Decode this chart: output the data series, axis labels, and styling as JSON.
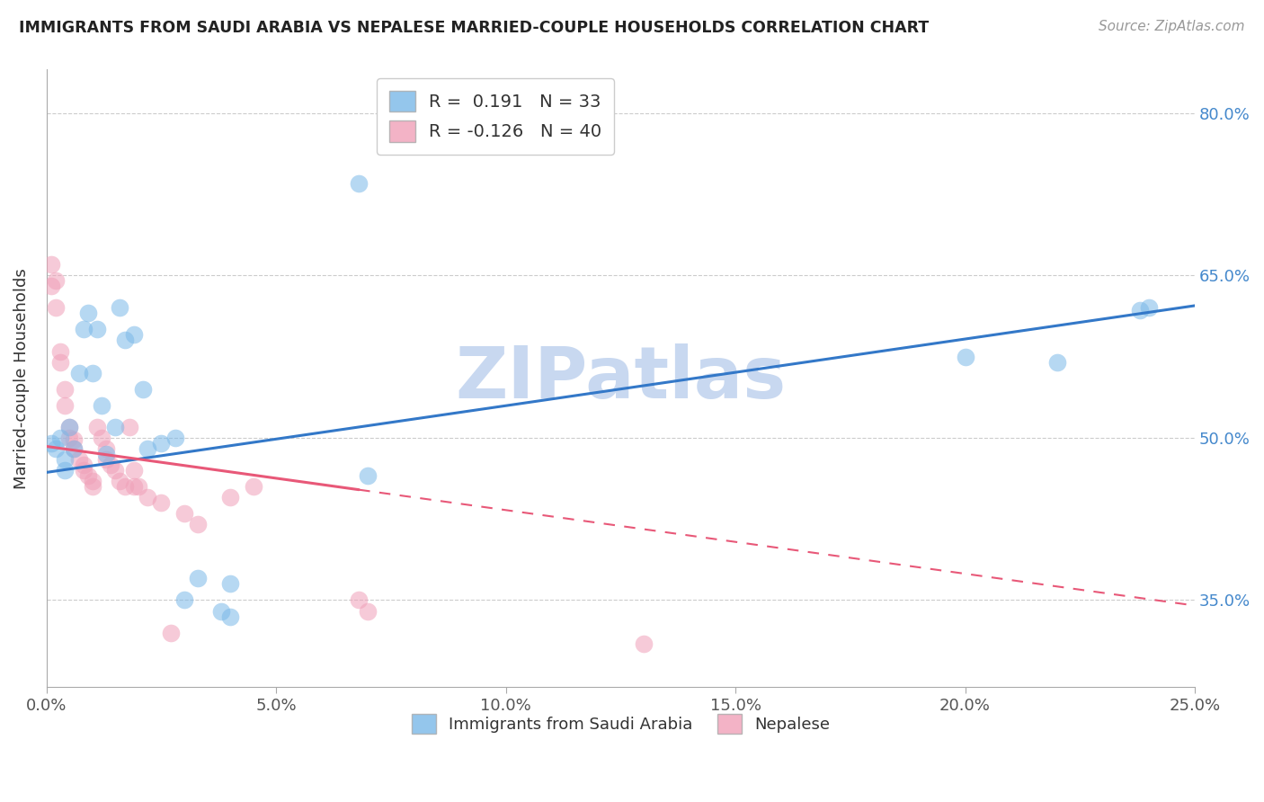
{
  "title": "IMMIGRANTS FROM SAUDI ARABIA VS NEPALESE MARRIED-COUPLE HOUSEHOLDS CORRELATION CHART",
  "source": "Source: ZipAtlas.com",
  "ylabel": "Married-couple Households",
  "xlim": [
    0.0,
    0.25
  ],
  "ylim": [
    0.27,
    0.84
  ],
  "yticks": [
    0.35,
    0.5,
    0.65,
    0.8
  ],
  "ytick_labels": [
    "35.0%",
    "50.0%",
    "65.0%",
    "80.0%"
  ],
  "xticks": [
    0.0,
    0.05,
    0.1,
    0.15,
    0.2,
    0.25
  ],
  "xtick_labels": [
    "0.0%",
    "5.0%",
    "10.0%",
    "15.0%",
    "20.0%",
    "25.0%"
  ],
  "blue_R": 0.191,
  "blue_N": 33,
  "pink_R": -0.126,
  "pink_N": 40,
  "blue_color": "#7ab8e8",
  "pink_color": "#f0a0b8",
  "blue_line_color": "#3378c8",
  "pink_line_color": "#e85878",
  "watermark": "ZIPatlas",
  "watermark_color": "#c8d8f0",
  "blue_scatter_x": [
    0.001,
    0.002,
    0.003,
    0.004,
    0.004,
    0.005,
    0.006,
    0.007,
    0.008,
    0.009,
    0.01,
    0.011,
    0.012,
    0.013,
    0.015,
    0.016,
    0.017,
    0.019,
    0.021,
    0.022,
    0.025,
    0.028,
    0.03,
    0.033,
    0.038,
    0.04,
    0.04,
    0.068,
    0.07,
    0.2,
    0.22,
    0.238,
    0.24
  ],
  "blue_scatter_y": [
    0.495,
    0.49,
    0.5,
    0.48,
    0.47,
    0.51,
    0.49,
    0.56,
    0.6,
    0.615,
    0.56,
    0.6,
    0.53,
    0.485,
    0.51,
    0.62,
    0.59,
    0.595,
    0.545,
    0.49,
    0.495,
    0.5,
    0.35,
    0.37,
    0.34,
    0.365,
    0.335,
    0.735,
    0.465,
    0.575,
    0.57,
    0.618,
    0.62
  ],
  "pink_scatter_x": [
    0.001,
    0.001,
    0.002,
    0.002,
    0.003,
    0.003,
    0.004,
    0.004,
    0.005,
    0.005,
    0.006,
    0.006,
    0.007,
    0.008,
    0.008,
    0.009,
    0.01,
    0.01,
    0.011,
    0.012,
    0.013,
    0.013,
    0.014,
    0.015,
    0.016,
    0.017,
    0.018,
    0.019,
    0.019,
    0.02,
    0.022,
    0.025,
    0.027,
    0.03,
    0.033,
    0.04,
    0.045,
    0.068,
    0.07,
    0.13
  ],
  "pink_scatter_y": [
    0.64,
    0.66,
    0.62,
    0.645,
    0.58,
    0.57,
    0.545,
    0.53,
    0.51,
    0.5,
    0.498,
    0.49,
    0.48,
    0.475,
    0.47,
    0.465,
    0.46,
    0.455,
    0.51,
    0.5,
    0.49,
    0.48,
    0.475,
    0.47,
    0.46,
    0.455,
    0.51,
    0.47,
    0.455,
    0.455,
    0.445,
    0.44,
    0.32,
    0.43,
    0.42,
    0.445,
    0.455,
    0.35,
    0.34,
    0.31
  ],
  "blue_line_x": [
    0.0,
    0.25
  ],
  "blue_line_y": [
    0.468,
    0.622
  ],
  "pink_solid_line_x": [
    0.0,
    0.068
  ],
  "pink_solid_line_y": [
    0.492,
    0.452
  ],
  "pink_dashed_line_x": [
    0.068,
    0.25
  ],
  "pink_dashed_line_y": [
    0.452,
    0.345
  ]
}
